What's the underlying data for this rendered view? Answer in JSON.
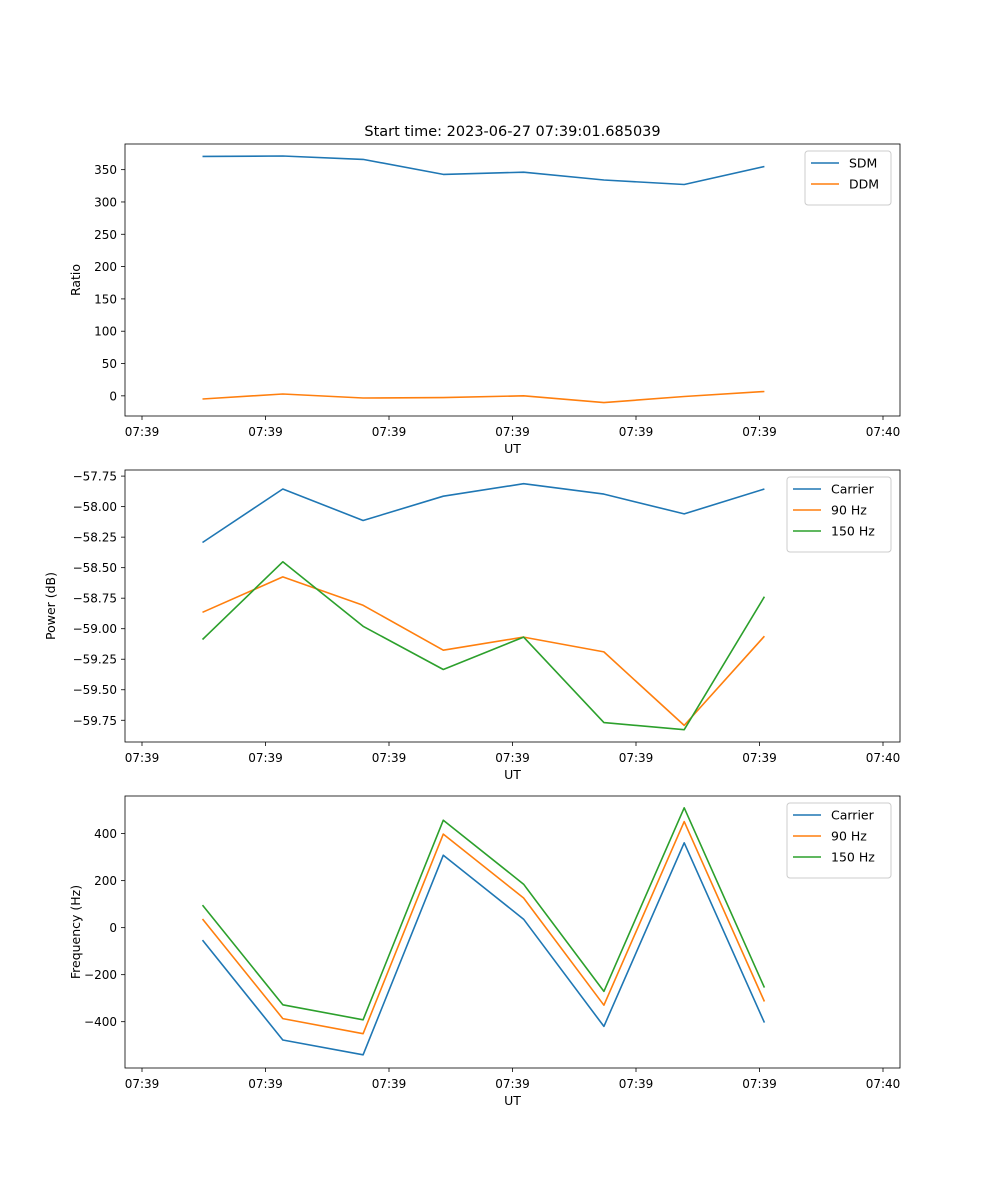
{
  "figure": {
    "title": "Start time: 2023-06-27 07:39:01.685039"
  },
  "chart_data": [
    {
      "type": "line",
      "xlabel": "UT",
      "ylabel": "Ratio",
      "xlim": [
        0,
        6
      ],
      "ylim": [
        -31.2,
        389.7
      ],
      "grid": false,
      "legend": "top-right",
      "x_ticks": [
        0,
        1,
        2,
        3,
        4,
        5,
        6
      ],
      "x_tick_labels": [
        "07:39",
        "07:39",
        "07:39",
        "07:39",
        "07:39",
        "07:39",
        "07:40"
      ],
      "y_ticks": [
        0,
        50,
        100,
        150,
        200,
        250,
        300,
        350
      ],
      "y_tick_labels": [
        "0",
        "50",
        "100",
        "150",
        "200",
        "250",
        "300",
        "350"
      ],
      "x": [
        0.49,
        1.14,
        1.79,
        2.44,
        3.09,
        3.74,
        4.39,
        5.04
      ],
      "series": [
        {
          "name": "SDM",
          "color": "#1f77b4",
          "values": [
            370.5,
            371.2,
            365.8,
            342.6,
            346.0,
            334.0,
            327.0,
            354.9
          ]
        },
        {
          "name": "DDM",
          "color": "#ff7f0e",
          "values": [
            -4.9,
            2.8,
            -3.4,
            -2.7,
            0.0,
            -10.5,
            -1.0,
            6.7
          ]
        }
      ]
    },
    {
      "type": "line",
      "xlabel": "UT",
      "ylabel": "Power (dB)",
      "xlim": [
        0,
        6
      ],
      "ylim": [
        -59.928,
        -57.7
      ],
      "grid": false,
      "legend": "top-right",
      "x_ticks": [
        0,
        1,
        2,
        3,
        4,
        5,
        6
      ],
      "x_tick_labels": [
        "07:39",
        "07:39",
        "07:39",
        "07:39",
        "07:39",
        "07:39",
        "07:40"
      ],
      "y_ticks": [
        -59.75,
        -59.5,
        -59.25,
        -59.0,
        -58.75,
        -58.5,
        -58.25,
        -58.0,
        -57.75
      ],
      "y_tick_labels": [
        "−59.75",
        "−59.50",
        "−59.25",
        "−59.00",
        "−58.75",
        "−58.50",
        "−58.25",
        "−58.00",
        "−57.75"
      ],
      "x": [
        0.49,
        1.14,
        1.79,
        2.44,
        3.09,
        3.74,
        4.39,
        5.04
      ],
      "series": [
        {
          "name": "Carrier",
          "color": "#1f77b4",
          "values": [
            -58.294,
            -57.856,
            -58.114,
            -57.915,
            -57.812,
            -57.897,
            -58.06,
            -57.856
          ]
        },
        {
          "name": "90 Hz",
          "color": "#ff7f0e",
          "values": [
            -58.866,
            -58.576,
            -58.808,
            -59.176,
            -59.069,
            -59.19,
            -59.792,
            -59.061
          ]
        },
        {
          "name": "150 Hz",
          "color": "#2ca02c",
          "values": [
            -59.088,
            -58.452,
            -58.98,
            -59.334,
            -59.069,
            -59.769,
            -59.827,
            -58.738
          ]
        }
      ]
    },
    {
      "type": "line",
      "xlabel": "UT",
      "ylabel": "Frequency (Hz)",
      "xlim": [
        0,
        6
      ],
      "ylim": [
        -597,
        560
      ],
      "grid": false,
      "legend": "top-right",
      "x_ticks": [
        0,
        1,
        2,
        3,
        4,
        5,
        6
      ],
      "x_tick_labels": [
        "07:39",
        "07:39",
        "07:39",
        "07:39",
        "07:39",
        "07:39",
        "07:40"
      ],
      "y_ticks": [
        -400,
        -200,
        0,
        200,
        400
      ],
      "y_tick_labels": [
        "−400",
        "−200",
        "0",
        "200",
        "400"
      ],
      "x": [
        0.49,
        1.14,
        1.79,
        2.44,
        3.09,
        3.74,
        4.39,
        5.04
      ],
      "series": [
        {
          "name": "Carrier",
          "color": "#1f77b4",
          "values": [
            -53,
            -478,
            -541,
            308,
            36,
            -420,
            361,
            -404
          ]
        },
        {
          "name": "90 Hz",
          "color": "#ff7f0e",
          "values": [
            37,
            -387,
            -451,
            398,
            126,
            -330,
            451,
            -314
          ]
        },
        {
          "name": "150 Hz",
          "color": "#2ca02c",
          "values": [
            96,
            -328,
            -392,
            457,
            185,
            -271,
            510,
            -255
          ]
        }
      ]
    }
  ]
}
